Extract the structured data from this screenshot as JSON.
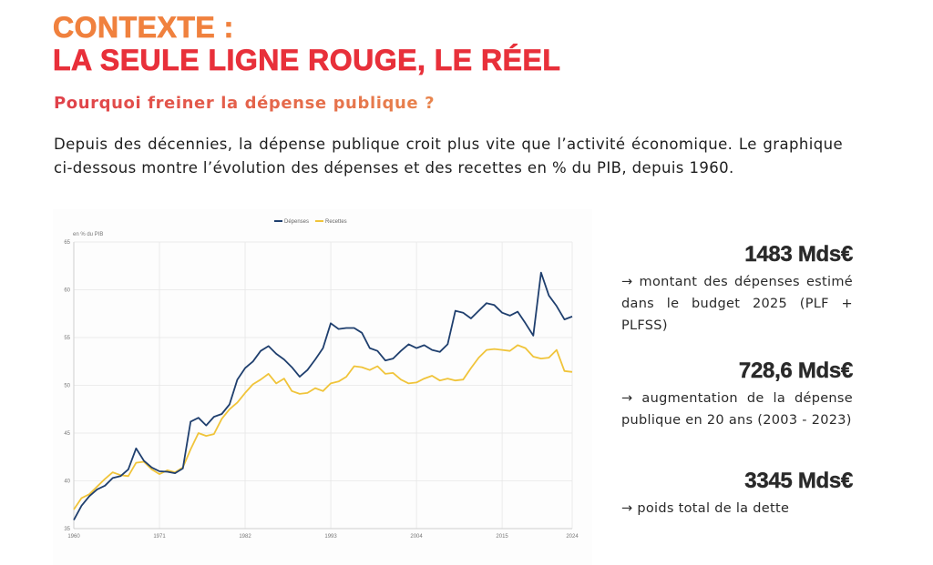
{
  "header": {
    "title_line1": "CONTEXTE :",
    "title_line2": "LA SEULE LIGNE ROUGE, LE RÉEL",
    "subtitle": "Pourquoi freiner la dépense publique ?",
    "intro": "Depuis des décennies, la dépense publique croit plus vite que l’activité économique. Le graphique ci-dessous montre l’évolution des dépenses et des recettes en % du PIB, depuis 1960."
  },
  "colors": {
    "title_orange": "#f0813e",
    "title_red": "#e8303a",
    "depenses": "#1f3f6e",
    "recettes": "#f0c43a"
  },
  "stats": [
    {
      "value": "1483 Mds€",
      "description": "→ montant des dépenses estimé dans le budget 2025 (PLF + PLFSS)"
    },
    {
      "value": "728,6 Mds€",
      "description": "→ augmentation de la dépense publique en 20 ans (2003 - 2023)"
    },
    {
      "value": "3345 Mds€",
      "description": "→ poids total de la dette"
    }
  ],
  "chart_data": {
    "type": "line",
    "title": "",
    "ylabel": "en % du PIB",
    "xlabel": "",
    "ylim": [
      35,
      65
    ],
    "xlim": [
      1960,
      2024
    ],
    "yticks": [
      35,
      40,
      45,
      50,
      55,
      60,
      65
    ],
    "xticks": [
      1960,
      1971,
      1982,
      1993,
      2004,
      2015,
      2024
    ],
    "grid": true,
    "legend_position": "top-right",
    "x": [
      1960,
      1961,
      1962,
      1963,
      1964,
      1965,
      1966,
      1967,
      1968,
      1969,
      1970,
      1971,
      1972,
      1973,
      1974,
      1975,
      1976,
      1977,
      1978,
      1979,
      1980,
      1981,
      1982,
      1983,
      1984,
      1985,
      1986,
      1987,
      1988,
      1989,
      1990,
      1991,
      1992,
      1993,
      1994,
      1995,
      1996,
      1997,
      1998,
      1999,
      2000,
      2001,
      2002,
      2003,
      2004,
      2005,
      2006,
      2007,
      2008,
      2009,
      2010,
      2011,
      2012,
      2013,
      2014,
      2015,
      2016,
      2017,
      2018,
      2019,
      2020,
      2021,
      2022,
      2023,
      2024
    ],
    "series": [
      {
        "name": "Dépenses",
        "color": "#1f3f6e",
        "values": [
          35.9,
          37.4,
          38.4,
          39.1,
          39.5,
          40.3,
          40.5,
          41.2,
          43.4,
          42.1,
          41.4,
          41.0,
          40.95,
          40.8,
          41.3,
          46.2,
          46.6,
          45.8,
          46.7,
          47.0,
          48.0,
          50.6,
          51.8,
          52.5,
          53.6,
          54.1,
          53.3,
          52.7,
          51.9,
          50.9,
          51.6,
          52.7,
          53.9,
          56.5,
          55.9,
          56.0,
          56.0,
          55.5,
          53.9,
          53.6,
          52.6,
          52.8,
          53.6,
          54.3,
          53.9,
          54.2,
          53.7,
          53.5,
          54.3,
          57.8,
          57.6,
          57.0,
          57.8,
          58.6,
          58.4,
          57.6,
          57.3,
          57.7,
          56.5,
          55.2,
          61.8,
          59.4,
          58.3,
          56.9,
          57.2
        ]
      },
      {
        "name": "Recettes",
        "color": "#f0c43a",
        "values": [
          37.0,
          38.2,
          38.6,
          39.4,
          40.2,
          40.9,
          40.6,
          40.5,
          41.9,
          42.0,
          41.2,
          40.7,
          41.1,
          40.9,
          41.4,
          43.3,
          45.0,
          44.7,
          44.9,
          46.5,
          47.5,
          48.2,
          49.2,
          50.1,
          50.6,
          51.2,
          50.2,
          50.7,
          49.4,
          49.1,
          49.2,
          49.7,
          49.4,
          50.2,
          50.4,
          50.9,
          52.0,
          51.9,
          51.6,
          52.0,
          51.2,
          51.3,
          50.6,
          50.2,
          50.3,
          50.7,
          51.0,
          50.5,
          50.7,
          50.5,
          50.6,
          51.8,
          52.9,
          53.7,
          53.8,
          53.7,
          53.6,
          54.2,
          53.9,
          53.0,
          52.8,
          52.9,
          53.7,
          51.5,
          51.4
        ]
      }
    ]
  }
}
